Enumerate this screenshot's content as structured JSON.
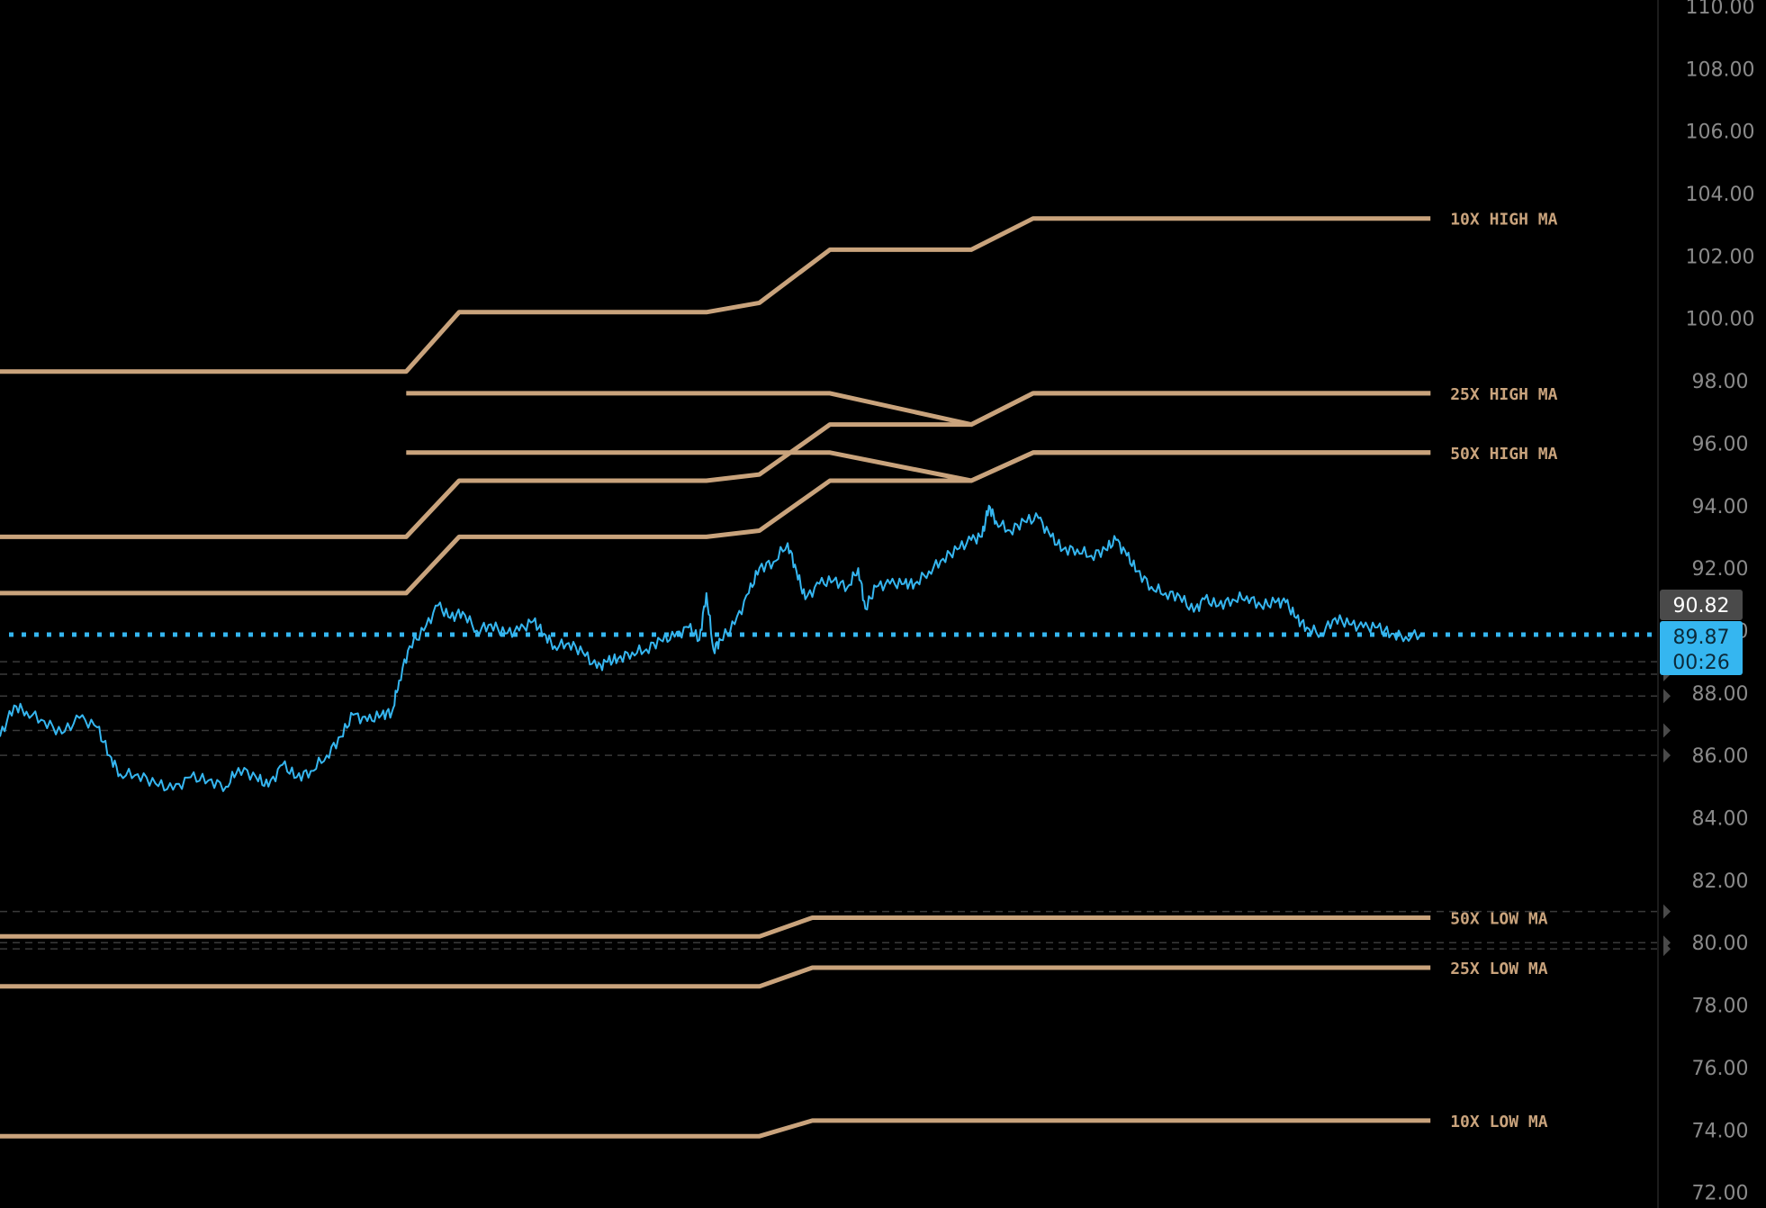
{
  "chart_data": {
    "type": "line",
    "ylim": [
      71.5,
      110.2
    ],
    "y_ticks": [
      "110.00",
      "108.00",
      "106.00",
      "104.00",
      "102.00",
      "100.00",
      "98.00",
      "96.00",
      "94.00",
      "92.00",
      "90.00",
      "88.00",
      "86.00",
      "84.00",
      "82.00",
      "80.00",
      "78.00",
      "76.00",
      "74.00",
      "72.00"
    ],
    "colors": {
      "price": "#35b6f0",
      "ma": "#c9a37c",
      "background": "#000000",
      "tick_text": "#8a8a8a",
      "dashed": "#3a3a3a"
    },
    "last_price": {
      "value": "89.87",
      "countdown": "00:26",
      "y": 89.87
    },
    "marker_price": {
      "value": "90.82",
      "y": 90.82
    },
    "dashed_levels": [
      89.0,
      88.6,
      87.9,
      86.8,
      86.0,
      81.0,
      80.0,
      79.8
    ],
    "ma_lines": [
      {
        "name": "10X HIGH MA",
        "points": [
          [
            0,
            98.3
          ],
          [
            0.23,
            98.3
          ],
          [
            0.26,
            100.2
          ],
          [
            0.4,
            100.2
          ],
          [
            0.43,
            100.5
          ],
          [
            0.47,
            102.2
          ],
          [
            0.55,
            102.2
          ],
          [
            0.585,
            103.2
          ],
          [
            0.81,
            103.2
          ]
        ]
      },
      {
        "name": "25X HIGH MA",
        "points": [
          [
            0.23,
            97.6
          ],
          [
            0.47,
            97.6
          ],
          [
            0.55,
            96.6
          ],
          [
            0.585,
            97.6
          ],
          [
            0.81,
            97.6
          ]
        ]
      },
      {
        "name": "50X HIGH MA",
        "points": [
          [
            0.23,
            95.7
          ],
          [
            0.47,
            95.7
          ],
          [
            0.55,
            94.8
          ],
          [
            0.585,
            95.7
          ],
          [
            0.81,
            95.7
          ]
        ]
      },
      {
        "name": "",
        "points": [
          [
            0,
            93.0
          ],
          [
            0.23,
            93.0
          ],
          [
            0.26,
            94.8
          ],
          [
            0.4,
            94.8
          ],
          [
            0.43,
            95.0
          ],
          [
            0.47,
            96.6
          ],
          [
            0.55,
            96.6
          ],
          [
            0.585,
            97.6
          ],
          [
            0.81,
            97.6
          ]
        ]
      },
      {
        "name": "",
        "points": [
          [
            0,
            91.2
          ],
          [
            0.23,
            91.2
          ],
          [
            0.26,
            93.0
          ],
          [
            0.4,
            93.0
          ],
          [
            0.43,
            93.2
          ],
          [
            0.47,
            94.8
          ],
          [
            0.55,
            94.8
          ],
          [
            0.585,
            95.7
          ],
          [
            0.81,
            95.7
          ]
        ]
      },
      {
        "name": "50X LOW MA",
        "points": [
          [
            0,
            80.2
          ],
          [
            0.43,
            80.2
          ],
          [
            0.46,
            80.8
          ],
          [
            0.81,
            80.8
          ]
        ]
      },
      {
        "name": "25X LOW MA",
        "points": [
          [
            0,
            78.6
          ],
          [
            0.43,
            78.6
          ],
          [
            0.46,
            79.2
          ],
          [
            0.81,
            79.2
          ]
        ]
      },
      {
        "name": "10X LOW MA",
        "points": [
          [
            0,
            73.8
          ],
          [
            0.43,
            73.8
          ],
          [
            0.46,
            74.3
          ],
          [
            0.81,
            74.3
          ]
        ]
      }
    ],
    "series": [
      {
        "values": [
          [
            0.0,
            86.6
          ],
          [
            0.008,
            87.6
          ],
          [
            0.015,
            87.4
          ],
          [
            0.025,
            87.1
          ],
          [
            0.035,
            86.7
          ],
          [
            0.045,
            87.2
          ],
          [
            0.055,
            86.9
          ],
          [
            0.062,
            86.0
          ],
          [
            0.068,
            85.4
          ],
          [
            0.078,
            85.4
          ],
          [
            0.088,
            85.1
          ],
          [
            0.098,
            84.9
          ],
          [
            0.108,
            85.3
          ],
          [
            0.118,
            85.2
          ],
          [
            0.128,
            85.0
          ],
          [
            0.135,
            85.6
          ],
          [
            0.145,
            85.3
          ],
          [
            0.152,
            85.0
          ],
          [
            0.16,
            85.7
          ],
          [
            0.168,
            85.3
          ],
          [
            0.176,
            85.5
          ],
          [
            0.185,
            86.0
          ],
          [
            0.193,
            86.6
          ],
          [
            0.2,
            87.3
          ],
          [
            0.208,
            87.1
          ],
          [
            0.216,
            87.3
          ],
          [
            0.222,
            87.4
          ],
          [
            0.226,
            88.4
          ],
          [
            0.232,
            89.5
          ],
          [
            0.24,
            90.0
          ],
          [
            0.248,
            90.8
          ],
          [
            0.255,
            90.4
          ],
          [
            0.262,
            90.6
          ],
          [
            0.27,
            90.0
          ],
          [
            0.278,
            90.2
          ],
          [
            0.286,
            89.9
          ],
          [
            0.294,
            90.0
          ],
          [
            0.302,
            90.3
          ],
          [
            0.308,
            89.9
          ],
          [
            0.314,
            89.5
          ],
          [
            0.322,
            89.6
          ],
          [
            0.33,
            89.3
          ],
          [
            0.338,
            88.8
          ],
          [
            0.344,
            89.0
          ],
          [
            0.35,
            89.1
          ],
          [
            0.358,
            89.3
          ],
          [
            0.366,
            89.4
          ],
          [
            0.374,
            89.7
          ],
          [
            0.382,
            89.8
          ],
          [
            0.39,
            90.1
          ],
          [
            0.396,
            89.7
          ],
          [
            0.4,
            91.2
          ],
          [
            0.404,
            89.4
          ],
          [
            0.408,
            89.7
          ],
          [
            0.416,
            90.2
          ],
          [
            0.424,
            91.2
          ],
          [
            0.43,
            92.0
          ],
          [
            0.438,
            92.2
          ],
          [
            0.446,
            92.8
          ],
          [
            0.451,
            91.9
          ],
          [
            0.456,
            91.0
          ],
          [
            0.464,
            91.5
          ],
          [
            0.472,
            91.6
          ],
          [
            0.48,
            91.4
          ],
          [
            0.486,
            92.0
          ],
          [
            0.49,
            90.7
          ],
          [
            0.496,
            91.4
          ],
          [
            0.504,
            91.5
          ],
          [
            0.512,
            91.5
          ],
          [
            0.518,
            91.5
          ],
          [
            0.526,
            91.9
          ],
          [
            0.534,
            92.3
          ],
          [
            0.542,
            92.6
          ],
          [
            0.55,
            92.9
          ],
          [
            0.556,
            93.0
          ],
          [
            0.56,
            94.0
          ],
          [
            0.564,
            93.5
          ],
          [
            0.572,
            93.2
          ],
          [
            0.58,
            93.5
          ],
          [
            0.588,
            93.6
          ],
          [
            0.595,
            93.0
          ],
          [
            0.602,
            92.6
          ],
          [
            0.61,
            92.6
          ],
          [
            0.618,
            92.4
          ],
          [
            0.626,
            92.6
          ],
          [
            0.632,
            92.9
          ],
          [
            0.638,
            92.4
          ],
          [
            0.644,
            91.9
          ],
          [
            0.652,
            91.4
          ],
          [
            0.66,
            91.2
          ],
          [
            0.668,
            91.1
          ],
          [
            0.676,
            90.6
          ],
          [
            0.682,
            91.0
          ],
          [
            0.69,
            90.8
          ],
          [
            0.698,
            91.0
          ],
          [
            0.706,
            91.1
          ],
          [
            0.714,
            90.8
          ],
          [
            0.722,
            90.9
          ],
          [
            0.728,
            90.9
          ],
          [
            0.734,
            90.4
          ],
          [
            0.74,
            90.1
          ],
          [
            0.748,
            89.9
          ],
          [
            0.756,
            90.4
          ],
          [
            0.764,
            90.2
          ],
          [
            0.772,
            90.1
          ],
          [
            0.78,
            90.1
          ],
          [
            0.788,
            89.9
          ],
          [
            0.796,
            89.8
          ],
          [
            0.806,
            89.9
          ]
        ]
      }
    ]
  }
}
